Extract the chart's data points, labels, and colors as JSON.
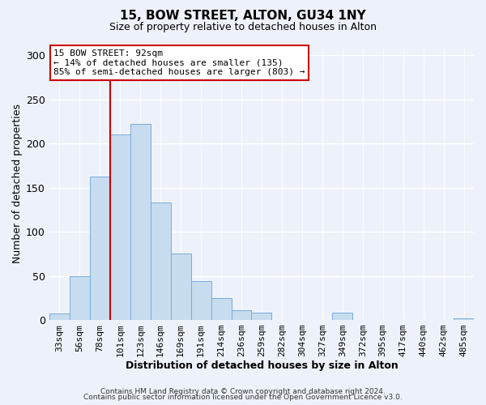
{
  "title": "15, BOW STREET, ALTON, GU34 1NY",
  "subtitle": "Size of property relative to detached houses in Alton",
  "xlabel": "Distribution of detached houses by size in Alton",
  "ylabel": "Number of detached properties",
  "bar_labels": [
    "33sqm",
    "56sqm",
    "78sqm",
    "101sqm",
    "123sqm",
    "146sqm",
    "169sqm",
    "191sqm",
    "214sqm",
    "236sqm",
    "259sqm",
    "282sqm",
    "304sqm",
    "327sqm",
    "349sqm",
    "372sqm",
    "395sqm",
    "417sqm",
    "440sqm",
    "462sqm",
    "485sqm"
  ],
  "bar_values": [
    7,
    50,
    163,
    210,
    222,
    133,
    75,
    44,
    25,
    11,
    8,
    0,
    0,
    0,
    8,
    0,
    0,
    0,
    0,
    0,
    2
  ],
  "bar_color": "#c8dcf0",
  "bar_edge_color": "#7aabda",
  "vline_color": "#cc0000",
  "vline_x_index": 2.5,
  "annotation_title": "15 BOW STREET: 92sqm",
  "annotation_line1": "← 14% of detached houses are smaller (135)",
  "annotation_line2": "85% of semi-detached houses are larger (803) →",
  "annotation_box_color": "#ffffff",
  "annotation_box_edge": "#cc0000",
  "ylim": [
    0,
    310
  ],
  "yticks": [
    0,
    50,
    100,
    150,
    200,
    250,
    300
  ],
  "footer1": "Contains HM Land Registry data © Crown copyright and database right 2024.",
  "footer2": "Contains public sector information licensed under the Open Government Licence v3.0.",
  "background_color": "#edf2fa",
  "grid_color": "#ffffff",
  "title_fontsize": 11,
  "subtitle_fontsize": 9,
  "tick_fontsize": 8,
  "axis_label_fontsize": 9
}
